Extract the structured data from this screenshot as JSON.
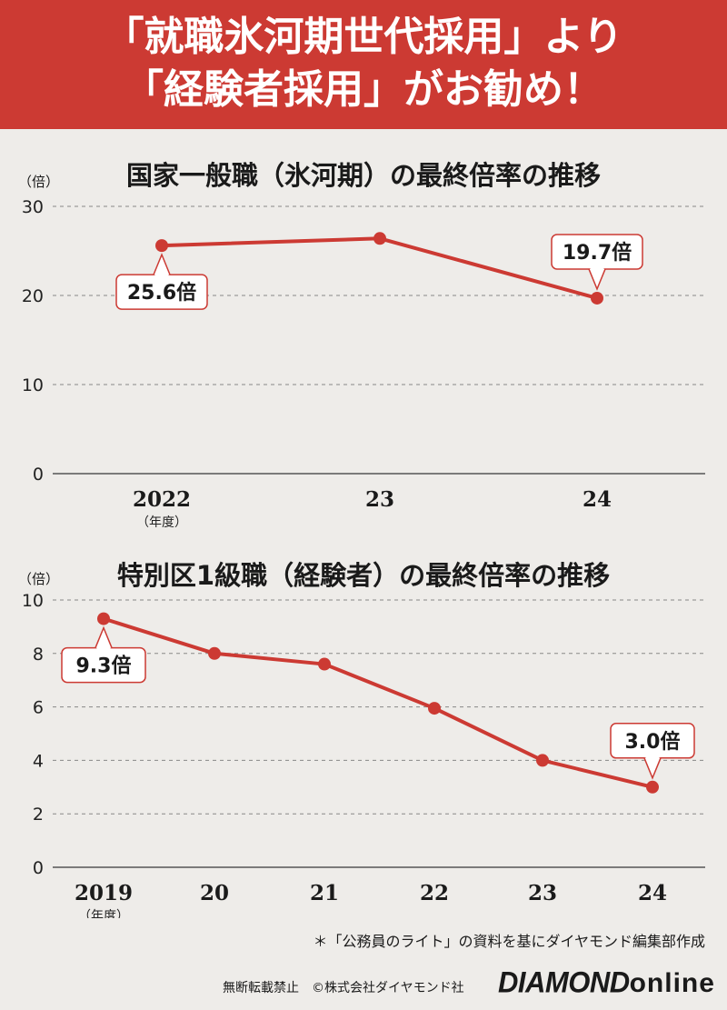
{
  "header": {
    "line1": "「就職氷河期世代採用」より",
    "line2": "「経験者採用」がお勧め！"
  },
  "chart_data": [
    {
      "type": "line",
      "title": "国家一般職（氷河期）の最終倍率の推移",
      "ylabel": "（倍）",
      "ylim": [
        0,
        30
      ],
      "yticks": [
        "0",
        "10",
        "20",
        "30"
      ],
      "categories": [
        "2022",
        "23",
        "24"
      ],
      "x_unit_note": "（年度）",
      "series": [
        {
          "values": [
            25.6,
            26.4,
            19.7
          ]
        }
      ],
      "annotations": [
        {
          "index": 0,
          "text": "25.6倍"
        },
        {
          "index": 2,
          "text": "19.7倍"
        }
      ],
      "grid": true,
      "color": "#cc3a33"
    },
    {
      "type": "line",
      "title": "特別区1級職（経験者）の最終倍率の推移",
      "ylabel": "（倍）",
      "ylim": [
        0,
        10
      ],
      "yticks": [
        "0",
        "2",
        "4",
        "6",
        "8",
        "10"
      ],
      "categories": [
        "2019",
        "20",
        "21",
        "22",
        "23",
        "24"
      ],
      "x_unit_note": "（年度）",
      "series": [
        {
          "values": [
            9.3,
            8.0,
            7.6,
            5.95,
            4.0,
            3.0
          ]
        }
      ],
      "annotations": [
        {
          "index": 0,
          "text": "9.3倍"
        },
        {
          "index": 5,
          "text": "3.0倍"
        }
      ],
      "grid": true,
      "color": "#cc3a33"
    }
  ],
  "footnote": "＊「公務員のライト」の資料を基にダイヤモンド編集部作成",
  "copyright": "無断転載禁止　©株式会社ダイヤモンド社",
  "logo": {
    "brand": "DIAMOND",
    "suffix": "online"
  }
}
